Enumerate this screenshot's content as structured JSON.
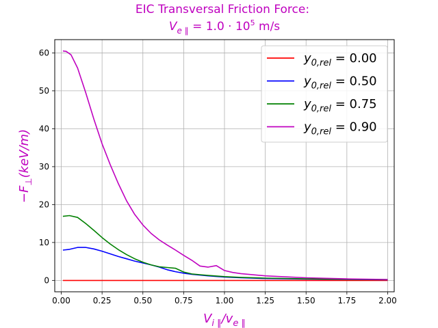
{
  "chart_data": {
    "type": "line",
    "title_line1": "EIC Transversal Friction Force:",
    "title_line2": "V_e∥ = 1.0·10^5 m/s",
    "xlabel": "V_i∥ / v_e∥",
    "ylabel": "−F_⊥(keV/m)",
    "xlim": [
      -0.04,
      2.04
    ],
    "ylim": [
      -3,
      63.5
    ],
    "xticks": [
      0.0,
      0.25,
      0.5,
      0.75,
      1.0,
      1.25,
      1.5,
      1.75,
      2.0
    ],
    "xtick_labels": [
      "0.00",
      "0.25",
      "0.50",
      "0.75",
      "1.00",
      "1.25",
      "1.50",
      "1.75",
      "2.00"
    ],
    "yticks": [
      0,
      10,
      20,
      30,
      40,
      50,
      60
    ],
    "ytick_labels": [
      "0",
      "10",
      "20",
      "30",
      "40",
      "50",
      "60"
    ],
    "grid": true,
    "legend_position": "top-right",
    "series": [
      {
        "name": "y0,rel = 0.00",
        "legend_main": "y",
        "legend_sub": "0,rel",
        "legend_value": " = 0.00",
        "color": "#ff0000",
        "x": [
          0.01,
          0.5,
          1.0,
          1.5,
          2.0
        ],
        "y": [
          0.0,
          0.0,
          0.0,
          0.0,
          0.0
        ]
      },
      {
        "name": "y0,rel = 0.50",
        "legend_main": "y",
        "legend_sub": "0,rel",
        "legend_value": " = 0.50",
        "color": "#0000ff",
        "x": [
          0.01,
          0.05,
          0.1,
          0.15,
          0.2,
          0.25,
          0.3,
          0.35,
          0.4,
          0.45,
          0.5,
          0.55,
          0.6,
          0.65,
          0.7,
          0.75,
          0.8,
          0.85,
          0.9,
          1.0,
          1.1,
          1.25,
          1.5,
          1.75,
          2.0
        ],
        "y": [
          8.0,
          8.2,
          8.7,
          8.7,
          8.3,
          7.7,
          7.0,
          6.3,
          5.7,
          5.1,
          4.6,
          4.1,
          3.5,
          2.8,
          2.3,
          1.9,
          1.6,
          1.4,
          1.2,
          0.9,
          0.7,
          0.5,
          0.35,
          0.25,
          0.18
        ]
      },
      {
        "name": "y0,rel = 0.75",
        "legend_main": "y",
        "legend_sub": "0,rel",
        "legend_value": " = 0.75",
        "color": "#008000",
        "x": [
          0.01,
          0.05,
          0.1,
          0.15,
          0.2,
          0.25,
          0.3,
          0.35,
          0.4,
          0.45,
          0.5,
          0.55,
          0.6,
          0.65,
          0.7,
          0.75,
          0.8,
          0.85,
          0.9,
          1.0,
          1.1,
          1.25,
          1.5,
          1.75,
          2.0
        ],
        "y": [
          16.9,
          17.1,
          16.6,
          15.0,
          13.2,
          11.3,
          9.6,
          8.1,
          6.8,
          5.7,
          4.8,
          4.1,
          3.6,
          3.4,
          3.2,
          2.2,
          1.7,
          1.5,
          1.3,
          1.0,
          0.8,
          0.6,
          0.4,
          0.3,
          0.2
        ]
      },
      {
        "name": "y0,rel = 0.90",
        "legend_main": "y",
        "legend_sub": "0,rel",
        "legend_value": " = 0.90",
        "color": "#bf00bf",
        "x": [
          0.01,
          0.03,
          0.06,
          0.1,
          0.15,
          0.2,
          0.25,
          0.3,
          0.35,
          0.4,
          0.45,
          0.5,
          0.55,
          0.6,
          0.65,
          0.7,
          0.75,
          0.8,
          0.85,
          0.9,
          0.95,
          1.0,
          1.05,
          1.1,
          1.25,
          1.5,
          1.75,
          2.0
        ],
        "y": [
          60.5,
          60.4,
          59.5,
          56.0,
          49.5,
          42.5,
          36.0,
          30.5,
          25.5,
          21.0,
          17.4,
          14.6,
          12.4,
          10.7,
          9.3,
          8.0,
          6.6,
          5.3,
          3.8,
          3.5,
          3.9,
          2.6,
          2.1,
          1.8,
          1.2,
          0.7,
          0.4,
          0.25
        ]
      }
    ]
  }
}
